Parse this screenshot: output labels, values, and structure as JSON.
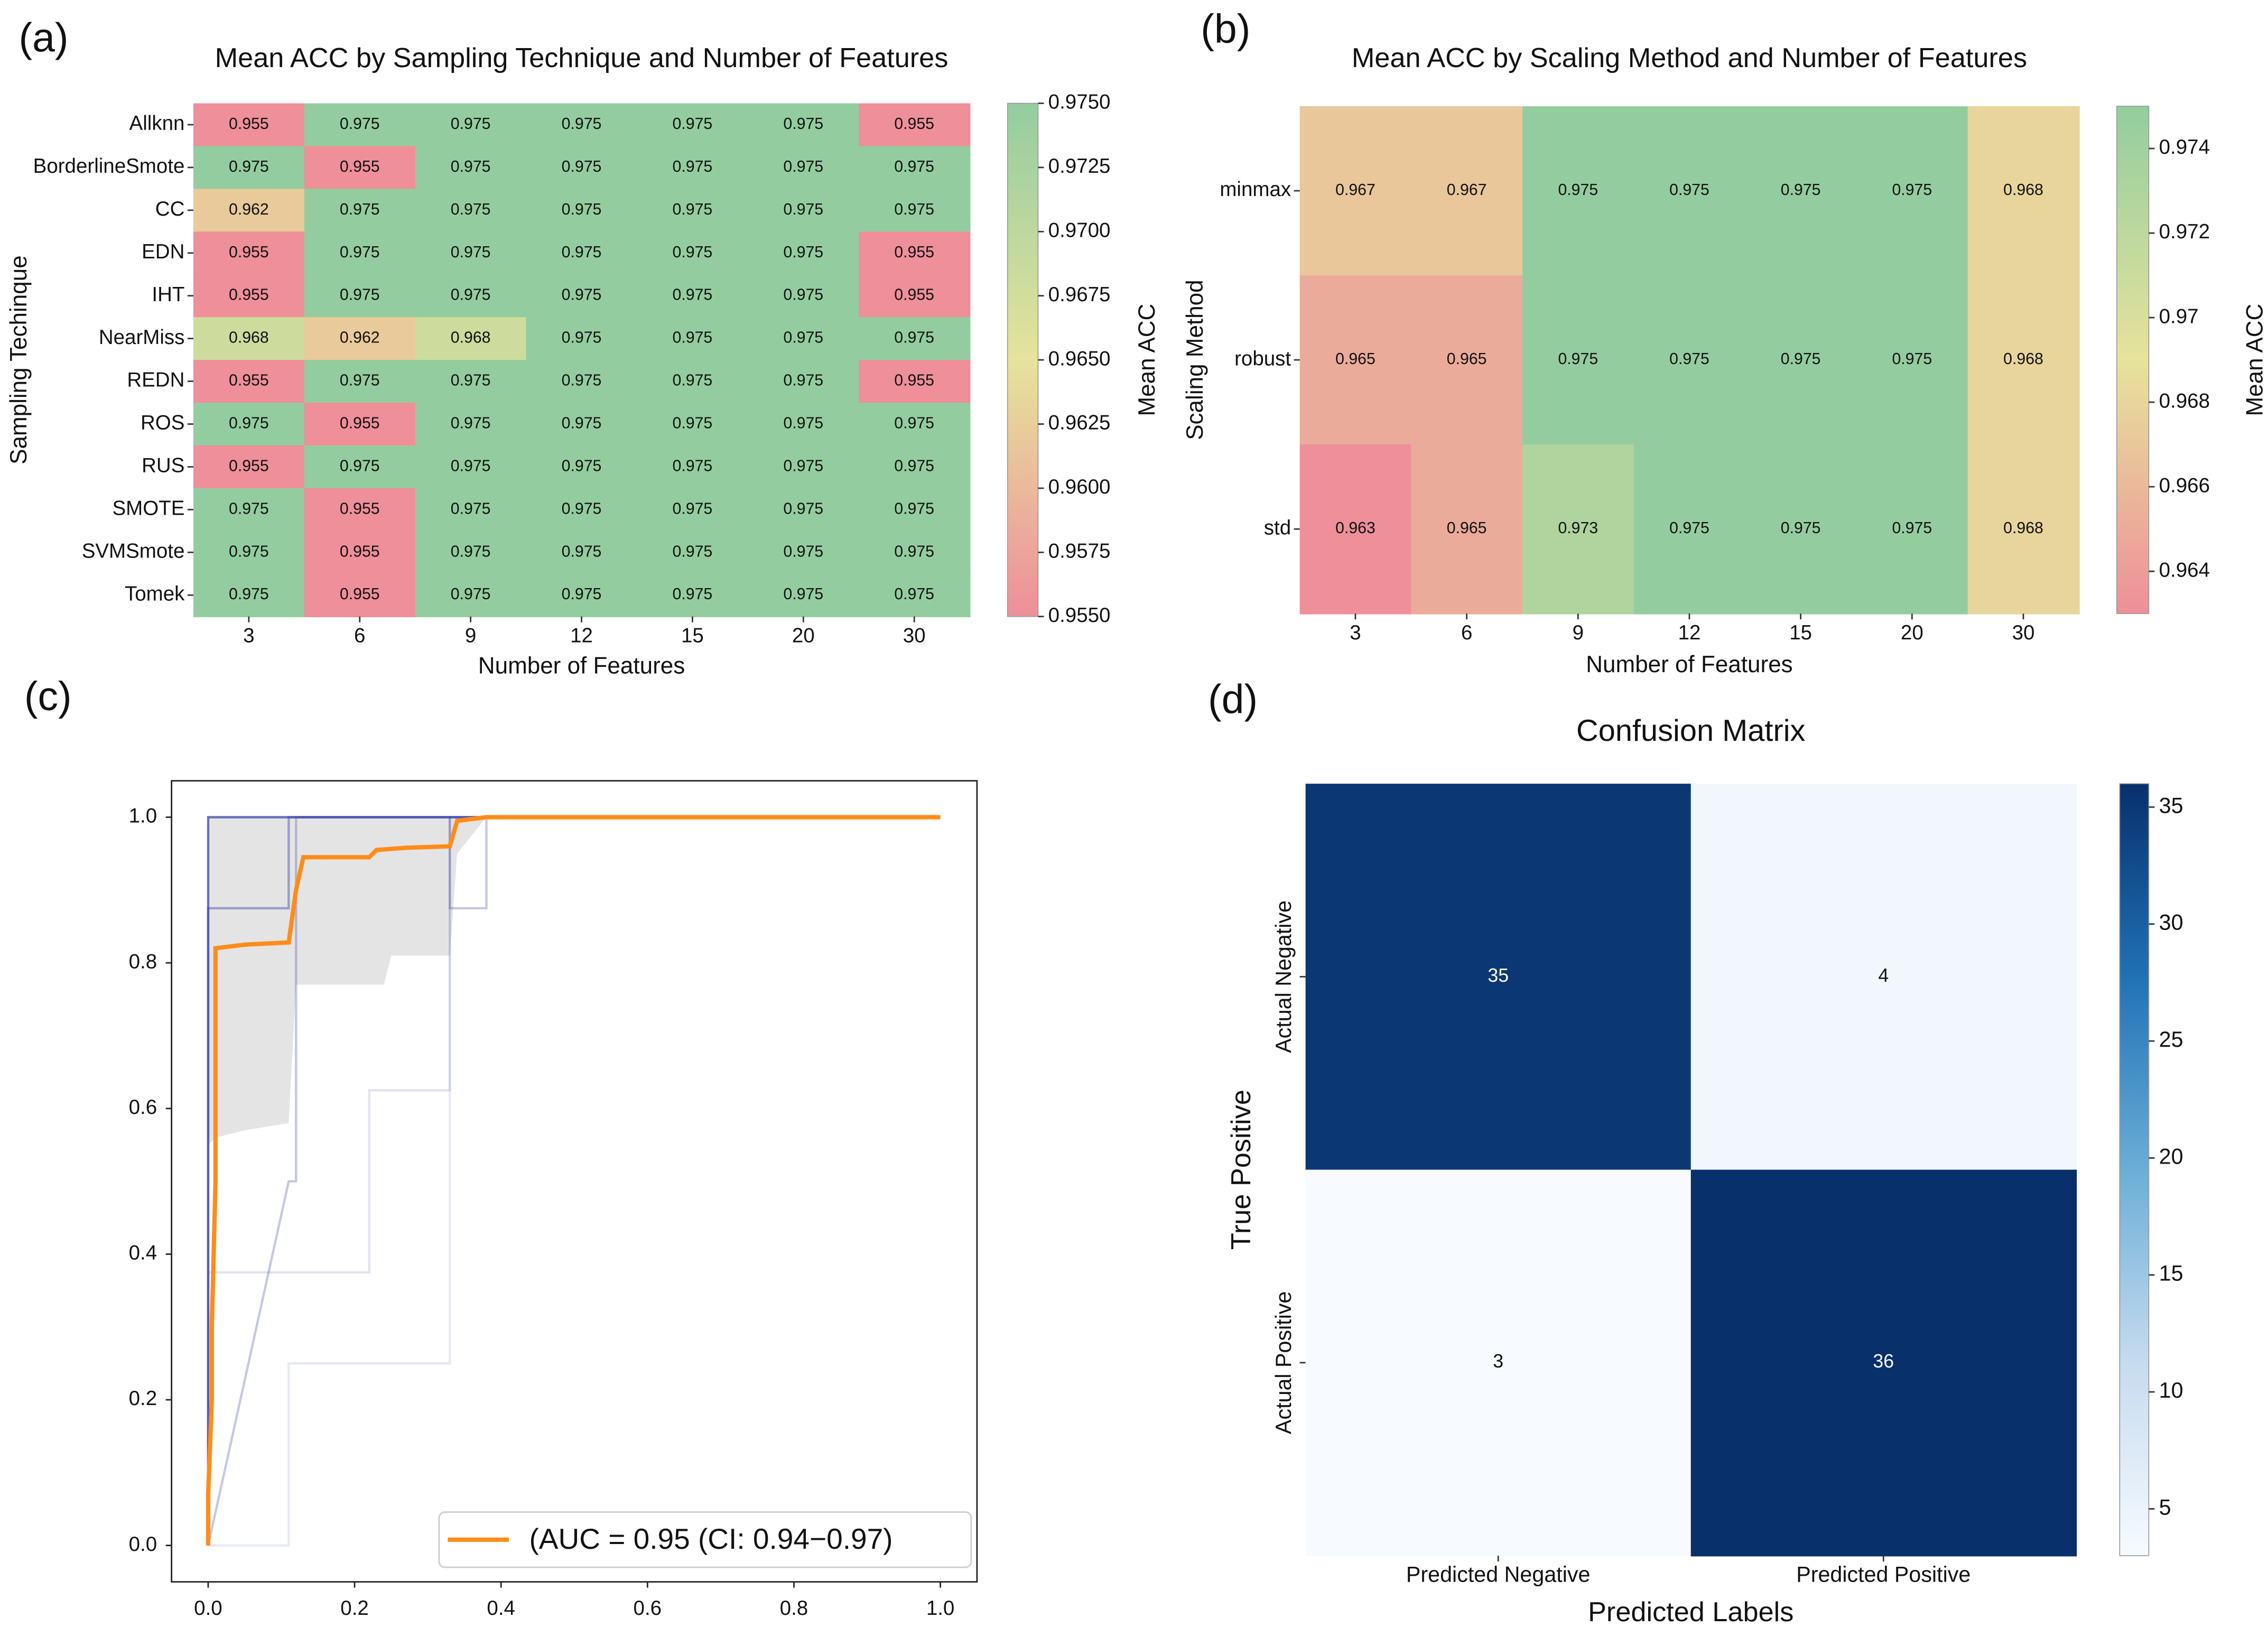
{
  "chart_data": [
    {
      "type": "heatmap",
      "panel_label": "(a)",
      "title": "Mean ACC by Sampling Technique and Number of Features",
      "x_label": "Number of Features",
      "y_label": "Sampling Techinque",
      "colorbar_label": "Mean ACC",
      "x_categories": [
        "3",
        "6",
        "9",
        "12",
        "15",
        "20",
        "30"
      ],
      "y_categories": [
        "Allknn",
        "BorderlineSmote",
        "CC",
        "EDN",
        "IHT",
        "NearMiss",
        "REDN",
        "ROS",
        "RUS",
        "SMOTE",
        "SVMSmote",
        "Tomek"
      ],
      "values": [
        [
          0.955,
          0.975,
          0.975,
          0.975,
          0.975,
          0.975,
          0.955
        ],
        [
          0.975,
          0.955,
          0.975,
          0.975,
          0.975,
          0.975,
          0.975
        ],
        [
          0.962,
          0.975,
          0.975,
          0.975,
          0.975,
          0.975,
          0.975
        ],
        [
          0.955,
          0.975,
          0.975,
          0.975,
          0.975,
          0.975,
          0.955
        ],
        [
          0.955,
          0.975,
          0.975,
          0.975,
          0.975,
          0.975,
          0.955
        ],
        [
          0.968,
          0.962,
          0.968,
          0.975,
          0.975,
          0.975,
          0.975
        ],
        [
          0.955,
          0.975,
          0.975,
          0.975,
          0.975,
          0.975,
          0.955
        ],
        [
          0.975,
          0.955,
          0.975,
          0.975,
          0.975,
          0.975,
          0.975
        ],
        [
          0.955,
          0.975,
          0.975,
          0.975,
          0.975,
          0.975,
          0.975
        ],
        [
          0.975,
          0.955,
          0.975,
          0.975,
          0.975,
          0.975,
          0.975
        ],
        [
          0.975,
          0.955,
          0.975,
          0.975,
          0.975,
          0.975,
          0.975
        ],
        [
          0.975,
          0.955,
          0.975,
          0.975,
          0.975,
          0.975,
          0.975
        ]
      ],
      "colormap": [
        "#ee8f99",
        "#e6e39c",
        "#93cd9f"
      ],
      "clim": [
        0.955,
        0.975
      ],
      "cticks": [
        {
          "value": 0.955,
          "label": "0.9550"
        },
        0.9575,
        {
          "value": 0.96,
          "label": "0.9600"
        },
        0.9625,
        {
          "value": 0.965,
          "label": "0.9650"
        },
        0.9675,
        {
          "value": 0.97,
          "label": "0.9700"
        },
        0.9725,
        {
          "value": 0.975,
          "label": "0.9750"
        }
      ]
    },
    {
      "type": "heatmap",
      "panel_label": "(b)",
      "title": "Mean ACC by Scaling Method and Number of Features",
      "x_label": "Number of Features",
      "y_label": "Scaling Method",
      "colorbar_label": "Mean ACC",
      "x_categories": [
        "3",
        "6",
        "9",
        "12",
        "15",
        "20",
        "30"
      ],
      "y_categories": [
        "minmax",
        "robust",
        "std"
      ],
      "values": [
        [
          0.967,
          0.967,
          0.975,
          0.975,
          0.975,
          0.975,
          0.968
        ],
        [
          0.965,
          0.965,
          0.975,
          0.975,
          0.975,
          0.975,
          0.968
        ],
        [
          0.963,
          0.965,
          0.973,
          0.975,
          0.975,
          0.975,
          0.968
        ]
      ],
      "colormap": [
        "#ee8f99",
        "#e6e39c",
        "#93cd9f"
      ],
      "clim": [
        0.963,
        0.975
      ],
      "cticks": [
        0.964,
        0.966,
        0.968,
        0.97,
        0.972,
        0.974
      ]
    },
    {
      "type": "line",
      "panel_label": "(c)",
      "xlim": [
        -0.05,
        1.05
      ],
      "ylim": [
        -0.05,
        1.05
      ],
      "xticks": [
        {
          "value": 0,
          "label": "0.0"
        },
        0.2,
        0.4,
        0.6,
        0.8,
        {
          "value": 1,
          "label": "1.0"
        }
      ],
      "yticks": [
        {
          "value": 0,
          "label": "0.0"
        },
        0.2,
        0.4,
        0.6,
        0.8,
        {
          "value": 1,
          "label": "1.0"
        }
      ],
      "band": {
        "color": "#d9d9d9",
        "x": [
          0,
          0.01,
          0.05,
          0.11,
          0.12,
          0.2,
          0.24,
          0.25,
          0.33,
          0.34,
          0.38,
          1
        ],
        "lower": [
          0.55,
          0.56,
          0.57,
          0.58,
          0.77,
          0.77,
          0.77,
          0.81,
          0.81,
          0.95,
          1,
          1
        ],
        "upper": [
          1,
          1,
          1,
          1,
          1,
          1,
          1,
          1,
          1,
          1,
          1,
          1
        ]
      },
      "series": [
        {
          "color": "rgba(60,70,170,0.75)",
          "x": [
            0,
            0,
            1
          ],
          "values": [
            0,
            1,
            1
          ]
        },
        {
          "color": "rgba(60,70,170,0.45)",
          "x": [
            0,
            0,
            0.11,
            0.11,
            1
          ],
          "values": [
            0,
            0.875,
            0.875,
            1,
            1
          ]
        },
        {
          "color": "rgba(60,70,170,0.3)",
          "x": [
            0,
            0.11,
            0.11,
            0.12,
            0.12,
            0.33,
            0.33,
            0.38,
            0.38,
            1
          ],
          "values": [
            0,
            0.5,
            0.5,
            0.5,
            1,
            1,
            0.875,
            0.875,
            1,
            1
          ]
        },
        {
          "color": "rgba(60,70,170,0.15)",
          "x": [
            0,
            0,
            0.22,
            0.22,
            0.33,
            0.33,
            1
          ],
          "values": [
            0,
            0.375,
            0.375,
            0.625,
            0.625,
            1,
            1
          ]
        },
        {
          "color": "rgba(60,70,170,0.12)",
          "x": [
            0,
            0.11,
            0.11,
            0.33,
            0.33,
            1
          ],
          "values": [
            0,
            0,
            0.25,
            0.25,
            1,
            1
          ]
        },
        {
          "name": "(AUC = 0.95 (CI: 0.94−0.97)",
          "color": "#ff8c1a",
          "x": [
            0,
            0,
            0.005,
            0.005,
            0.01,
            0.01,
            0.01,
            0.05,
            0.11,
            0.12,
            0.13,
            0.22,
            0.23,
            0.27,
            0.33,
            0.34,
            0.38,
            1
          ],
          "values": [
            0,
            0.07,
            0.2,
            0.3,
            0.5,
            0.72,
            0.82,
            0.825,
            0.828,
            0.9,
            0.945,
            0.945,
            0.955,
            0.958,
            0.96,
            0.995,
            1,
            1
          ]
        }
      ],
      "legend": "lower right"
    },
    {
      "type": "heatmap",
      "panel_label": "(d)",
      "title": "Confusion Matrix",
      "x_label": "Predicted Labels",
      "y_label": "True Positive",
      "x_categories": [
        "Predicted Negative",
        "Predicted Positive"
      ],
      "y_categories": [
        "Actual Negative",
        "Actual Positive"
      ],
      "values": [
        [
          35,
          4
        ],
        [
          3,
          36
        ]
      ],
      "colormap": [
        "#f7fbff",
        "#c6dbef",
        "#6baed6",
        "#2171b5",
        "#08306b"
      ],
      "clim": [
        3,
        36
      ],
      "cticks": [
        5,
        10,
        15,
        20,
        25,
        30,
        35
      ]
    }
  ]
}
